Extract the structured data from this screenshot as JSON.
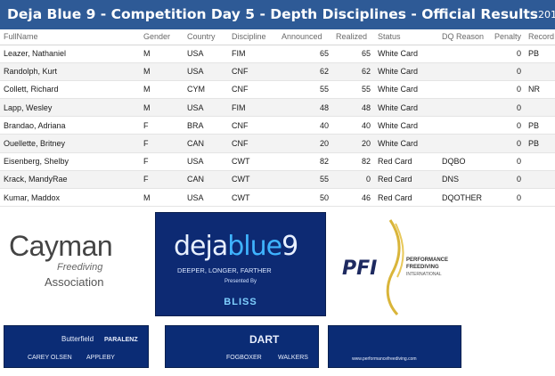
{
  "header": {
    "title": "Deja Blue 9 - Competition Day 5 - Depth Disciplines - Official Results",
    "year_fragment": "201"
  },
  "columns": [
    "FullName",
    "Gender",
    "Country",
    "Discipline",
    "Announced",
    "Realized",
    "Status",
    "DQ Reason",
    "Penalty",
    "Record"
  ],
  "rows": [
    {
      "name": "Leazer, Nathaniel",
      "gender": "M",
      "country": "USA",
      "discipline": "FIM",
      "announced": "65",
      "realized": "65",
      "status": "White Card",
      "dq": "",
      "penalty": "0",
      "record": "PB"
    },
    {
      "name": "Randolph, Kurt",
      "gender": "M",
      "country": "USA",
      "discipline": "CNF",
      "announced": "62",
      "realized": "62",
      "status": "White Card",
      "dq": "",
      "penalty": "0",
      "record": ""
    },
    {
      "name": "Collett, Richard",
      "gender": "M",
      "country": "CYM",
      "discipline": "CNF",
      "announced": "55",
      "realized": "55",
      "status": "White Card",
      "dq": "",
      "penalty": "0",
      "record": "NR"
    },
    {
      "name": "Lapp, Wesley",
      "gender": "M",
      "country": "USA",
      "discipline": "FIM",
      "announced": "48",
      "realized": "48",
      "status": "White Card",
      "dq": "",
      "penalty": "0",
      "record": ""
    },
    {
      "name": "Brandao, Adriana",
      "gender": "F",
      "country": "BRA",
      "discipline": "CNF",
      "announced": "40",
      "realized": "40",
      "status": "White Card",
      "dq": "",
      "penalty": "0",
      "record": "PB"
    },
    {
      "name": "Ouellette, Britney",
      "gender": "F",
      "country": "CAN",
      "discipline": "CNF",
      "announced": "20",
      "realized": "20",
      "status": "White Card",
      "dq": "",
      "penalty": "0",
      "record": "PB"
    },
    {
      "name": "Eisenberg, Shelby",
      "gender": "F",
      "country": "USA",
      "discipline": "CWT",
      "announced": "82",
      "realized": "82",
      "status": "Red Card",
      "dq": "DQBO",
      "penalty": "0",
      "record": ""
    },
    {
      "name": "Krack, MandyRae",
      "gender": "F",
      "country": "CAN",
      "discipline": "CWT",
      "announced": "55",
      "realized": "0",
      "status": "Red Card",
      "dq": "DNS",
      "penalty": "0",
      "record": ""
    },
    {
      "name": "Kumar, Maddox",
      "gender": "M",
      "country": "USA",
      "discipline": "CWT",
      "announced": "50",
      "realized": "46",
      "status": "Red Card",
      "dq": "DQOTHER",
      "penalty": "0",
      "record": ""
    }
  ],
  "logos": {
    "cayman": {
      "word": "Cayman",
      "line1": "Freediving",
      "line2": "Association"
    },
    "dejablue": {
      "word_a": "deja",
      "word_b": "blue",
      "word_c": "9",
      "tagline": "DEEPER, LONGER, FARTHER",
      "presented": "Presented By",
      "sponsor": "BLISS"
    },
    "pfi": {
      "mark": "PFI",
      "line1": "PERFORMANCE",
      "line2": "FREEDIVING",
      "line3": "INTERNATIONAL"
    }
  },
  "sponsors": {
    "banner1": [
      "Butterfield",
      "PARALENZ",
      "CAREY OLSEN",
      "APPLEBY"
    ],
    "banner2": [
      "DART",
      "FOGBOXER",
      "WALKERS"
    ],
    "banner3": [
      "www.performancefreediving.com"
    ]
  },
  "colors": {
    "header_bg": "#2e5a96",
    "logo_navy": "#0d2a73"
  }
}
